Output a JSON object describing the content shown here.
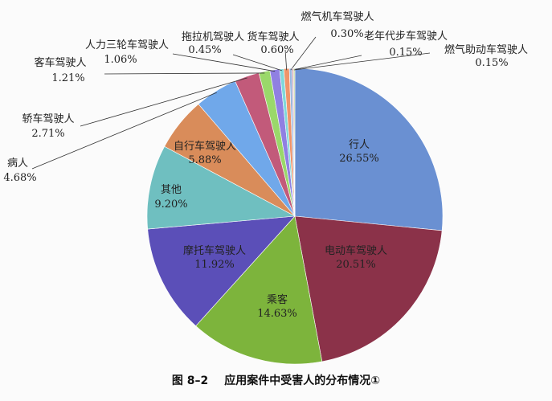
{
  "caption": {
    "figure_number": "图 8–2",
    "title": "应用案件中受害人的分布情况①"
  },
  "chart_data": {
    "type": "pie",
    "title": "",
    "start": "12 o'clock, clockwise",
    "categories": [
      "行人",
      "电动车驾驶人",
      "乘客",
      "摩托车驾驶人",
      "其他",
      "自行车驾驶人",
      "病人",
      "轿车驾驶人",
      "客车驾驶人",
      "人力三轮车驾驶人",
      "拖拉机驾驶人",
      "货车驾驶人",
      "燃气机车驾驶人",
      "老年代步车驾驶人",
      "燃气助动车驾驶人"
    ],
    "values": [
      26.55,
      20.51,
      14.63,
      11.92,
      9.2,
      5.88,
      4.68,
      2.71,
      1.21,
      1.06,
      0.45,
      0.6,
      0.3,
      0.15,
      0.15
    ],
    "value_labels": [
      "26.55%",
      "20.51%",
      "14.63%",
      "11.92%",
      "9.20%",
      "5.88%",
      "4.68%",
      "2.71%",
      "1.21%",
      "1.06%",
      "0.45%",
      "0.60%",
      "0.30%",
      "0.15%",
      "0.15%"
    ],
    "colors": [
      "#6a90d2",
      "#8b3249",
      "#7db43c",
      "#5b4fb8",
      "#6fbfc0",
      "#d98c5a",
      "#70a8ea",
      "#c25a7a",
      "#9ad86a",
      "#9080e2",
      "#80d8da",
      "#f0946a",
      "#9bb7e0",
      "#d8a0b0",
      "#c8d8a0"
    ],
    "unit": "%"
  }
}
